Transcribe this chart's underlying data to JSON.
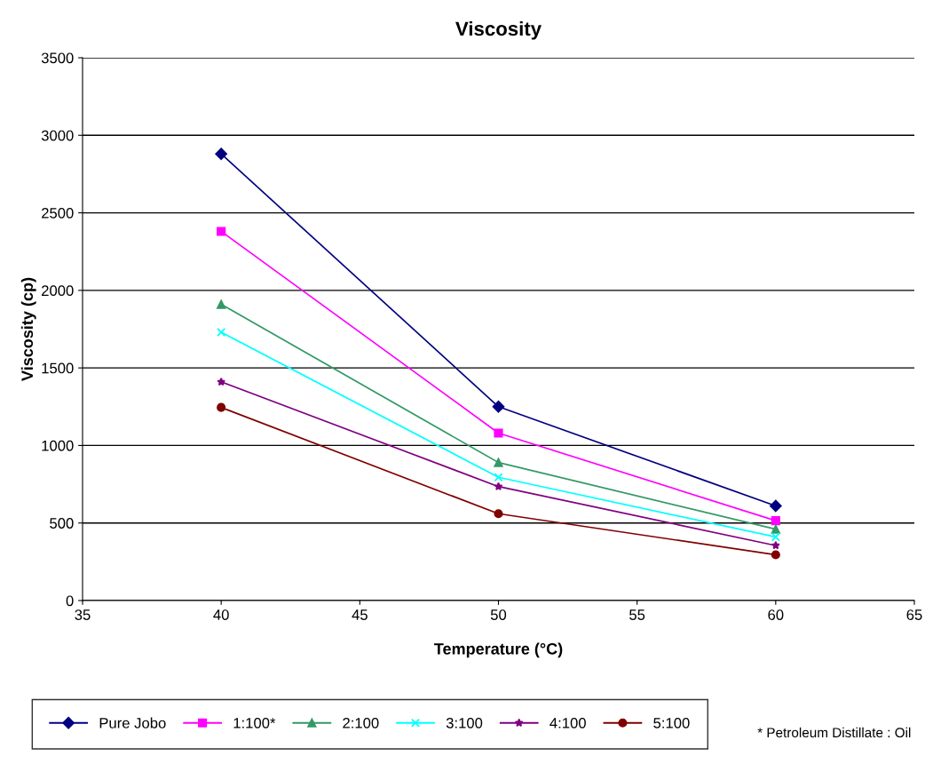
{
  "chart_data": {
    "type": "line",
    "title": "Viscosity",
    "xlabel": "Temperature (°C)",
    "ylabel": "Viscosity (cp)",
    "x": [
      40,
      50,
      60
    ],
    "series": [
      {
        "name": "Pure Jobo",
        "color": "#000080",
        "marker": "diamond",
        "values": [
          2880,
          1250,
          610
        ]
      },
      {
        "name": "1:100*",
        "color": "#ff00ff",
        "marker": "square",
        "values": [
          2380,
          1080,
          515
        ]
      },
      {
        "name": "2:100",
        "color": "#339966",
        "marker": "triangle",
        "values": [
          1910,
          890,
          460
        ]
      },
      {
        "name": "3:100",
        "color": "#00ffff",
        "marker": "cross",
        "values": [
          1730,
          795,
          410
        ]
      },
      {
        "name": "4:100",
        "color": "#800080",
        "marker": "star",
        "values": [
          1410,
          735,
          355
        ]
      },
      {
        "name": "5:100",
        "color": "#800000",
        "marker": "circle",
        "values": [
          1245,
          560,
          295
        ]
      }
    ],
    "xlim": [
      35,
      65
    ],
    "xticks": [
      35,
      40,
      45,
      50,
      55,
      60,
      65
    ],
    "ylim": [
      0,
      3500
    ],
    "yticks": [
      0,
      500,
      1000,
      1500,
      2000,
      2500,
      3000,
      3500
    ],
    "grid": "y",
    "legend": "bottom",
    "line_style": "solid",
    "annotations": [
      "* Petroleum Distillate : Oil"
    ]
  }
}
